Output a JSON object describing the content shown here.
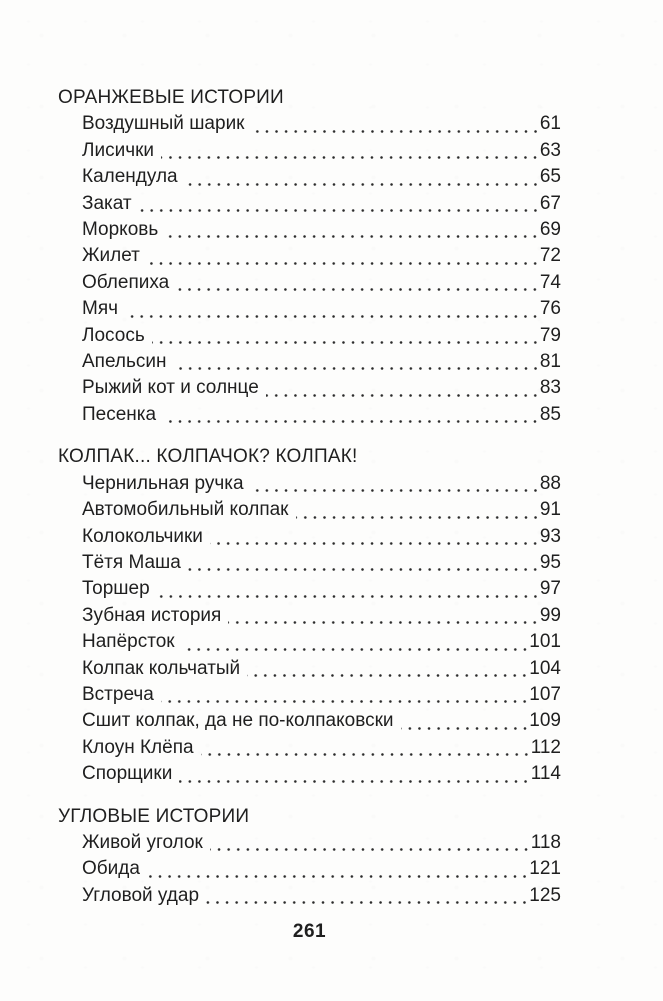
{
  "toc": {
    "sections": [
      {
        "title": "ОРАНЖЕВЫЕ ИСТОРИИ",
        "entries": [
          {
            "title": "Воздушный шарик",
            "page": "61"
          },
          {
            "title": "Лисички",
            "page": "63"
          },
          {
            "title": "Календула",
            "page": "65"
          },
          {
            "title": "Закат",
            "page": "67"
          },
          {
            "title": "Морковь",
            "page": "69"
          },
          {
            "title": "Жилет",
            "page": "72"
          },
          {
            "title": "Облепиха",
            "page": "74"
          },
          {
            "title": "Мяч",
            "page": "76"
          },
          {
            "title": "Лосось",
            "page": "79"
          },
          {
            "title": "Апельсин",
            "page": "81"
          },
          {
            "title": "Рыжий кот и солнце",
            "page": "83"
          },
          {
            "title": "Песенка",
            "page": "85"
          }
        ]
      },
      {
        "title": "КОЛПАК... КОЛПАЧОК? КОЛПАК!",
        "entries": [
          {
            "title": "Чернильная ручка",
            "page": "88"
          },
          {
            "title": "Автомобильный колпак",
            "page": "91"
          },
          {
            "title": "Колокольчики",
            "page": "93"
          },
          {
            "title": "Тётя Маша",
            "page": "95"
          },
          {
            "title": "Торшер",
            "page": "97"
          },
          {
            "title": "Зубная история",
            "page": "99"
          },
          {
            "title": "Напёрсток",
            "page": "101"
          },
          {
            "title": "Колпак кольчатый",
            "page": "104"
          },
          {
            "title": "Встреча",
            "page": "107"
          },
          {
            "title": "Сшит колпак, да не по-колпаковски",
            "page": "109"
          },
          {
            "title": "Клоун Клёпа",
            "page": "112"
          },
          {
            "title": "Спорщики",
            "page": "114"
          }
        ]
      },
      {
        "title": "УГЛОВЫЕ ИСТОРИИ",
        "entries": [
          {
            "title": "Живой уголок",
            "page": "118"
          },
          {
            "title": "Обида",
            "page": "121"
          },
          {
            "title": "Угловой удар",
            "page": "125"
          }
        ]
      }
    ]
  },
  "footer": {
    "page_number": "261"
  },
  "colors": {
    "text": "#1f1f1f",
    "background": "#fdfdfc",
    "dot_leader": "#2b2b2b"
  }
}
